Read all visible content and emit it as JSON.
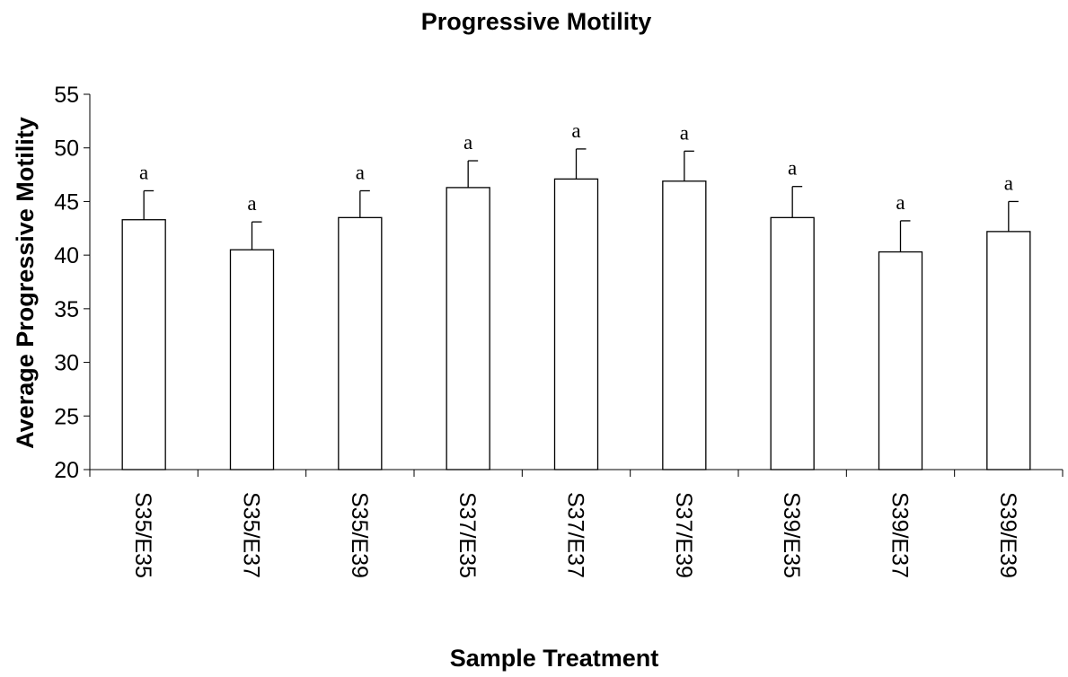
{
  "chart_data": {
    "type": "bar",
    "title": "Progressive Motility",
    "xlabel": "Sample Treatment",
    "ylabel": "Average Progressive Motility",
    "ylim": [
      20,
      55
    ],
    "yticks": [
      20,
      25,
      30,
      35,
      40,
      45,
      50,
      55
    ],
    "grid": false,
    "categories": [
      "S35/E35",
      "S35/E37",
      "S35/E39",
      "S37/E35",
      "S37/E37",
      "S37/E39",
      "S39/E35",
      "S39/E37",
      "S39/E39"
    ],
    "values": [
      43.3,
      40.5,
      43.5,
      46.3,
      47.1,
      46.9,
      43.5,
      40.3,
      42.2
    ],
    "error_upper": [
      2.7,
      2.6,
      2.5,
      2.5,
      2.8,
      2.8,
      2.9,
      2.9,
      2.8
    ],
    "labels": [
      "a",
      "a",
      "a",
      "a",
      "a",
      "a",
      "a",
      "a",
      "a"
    ],
    "bar_fill": "#ffffff",
    "bar_stroke": "#000000"
  }
}
